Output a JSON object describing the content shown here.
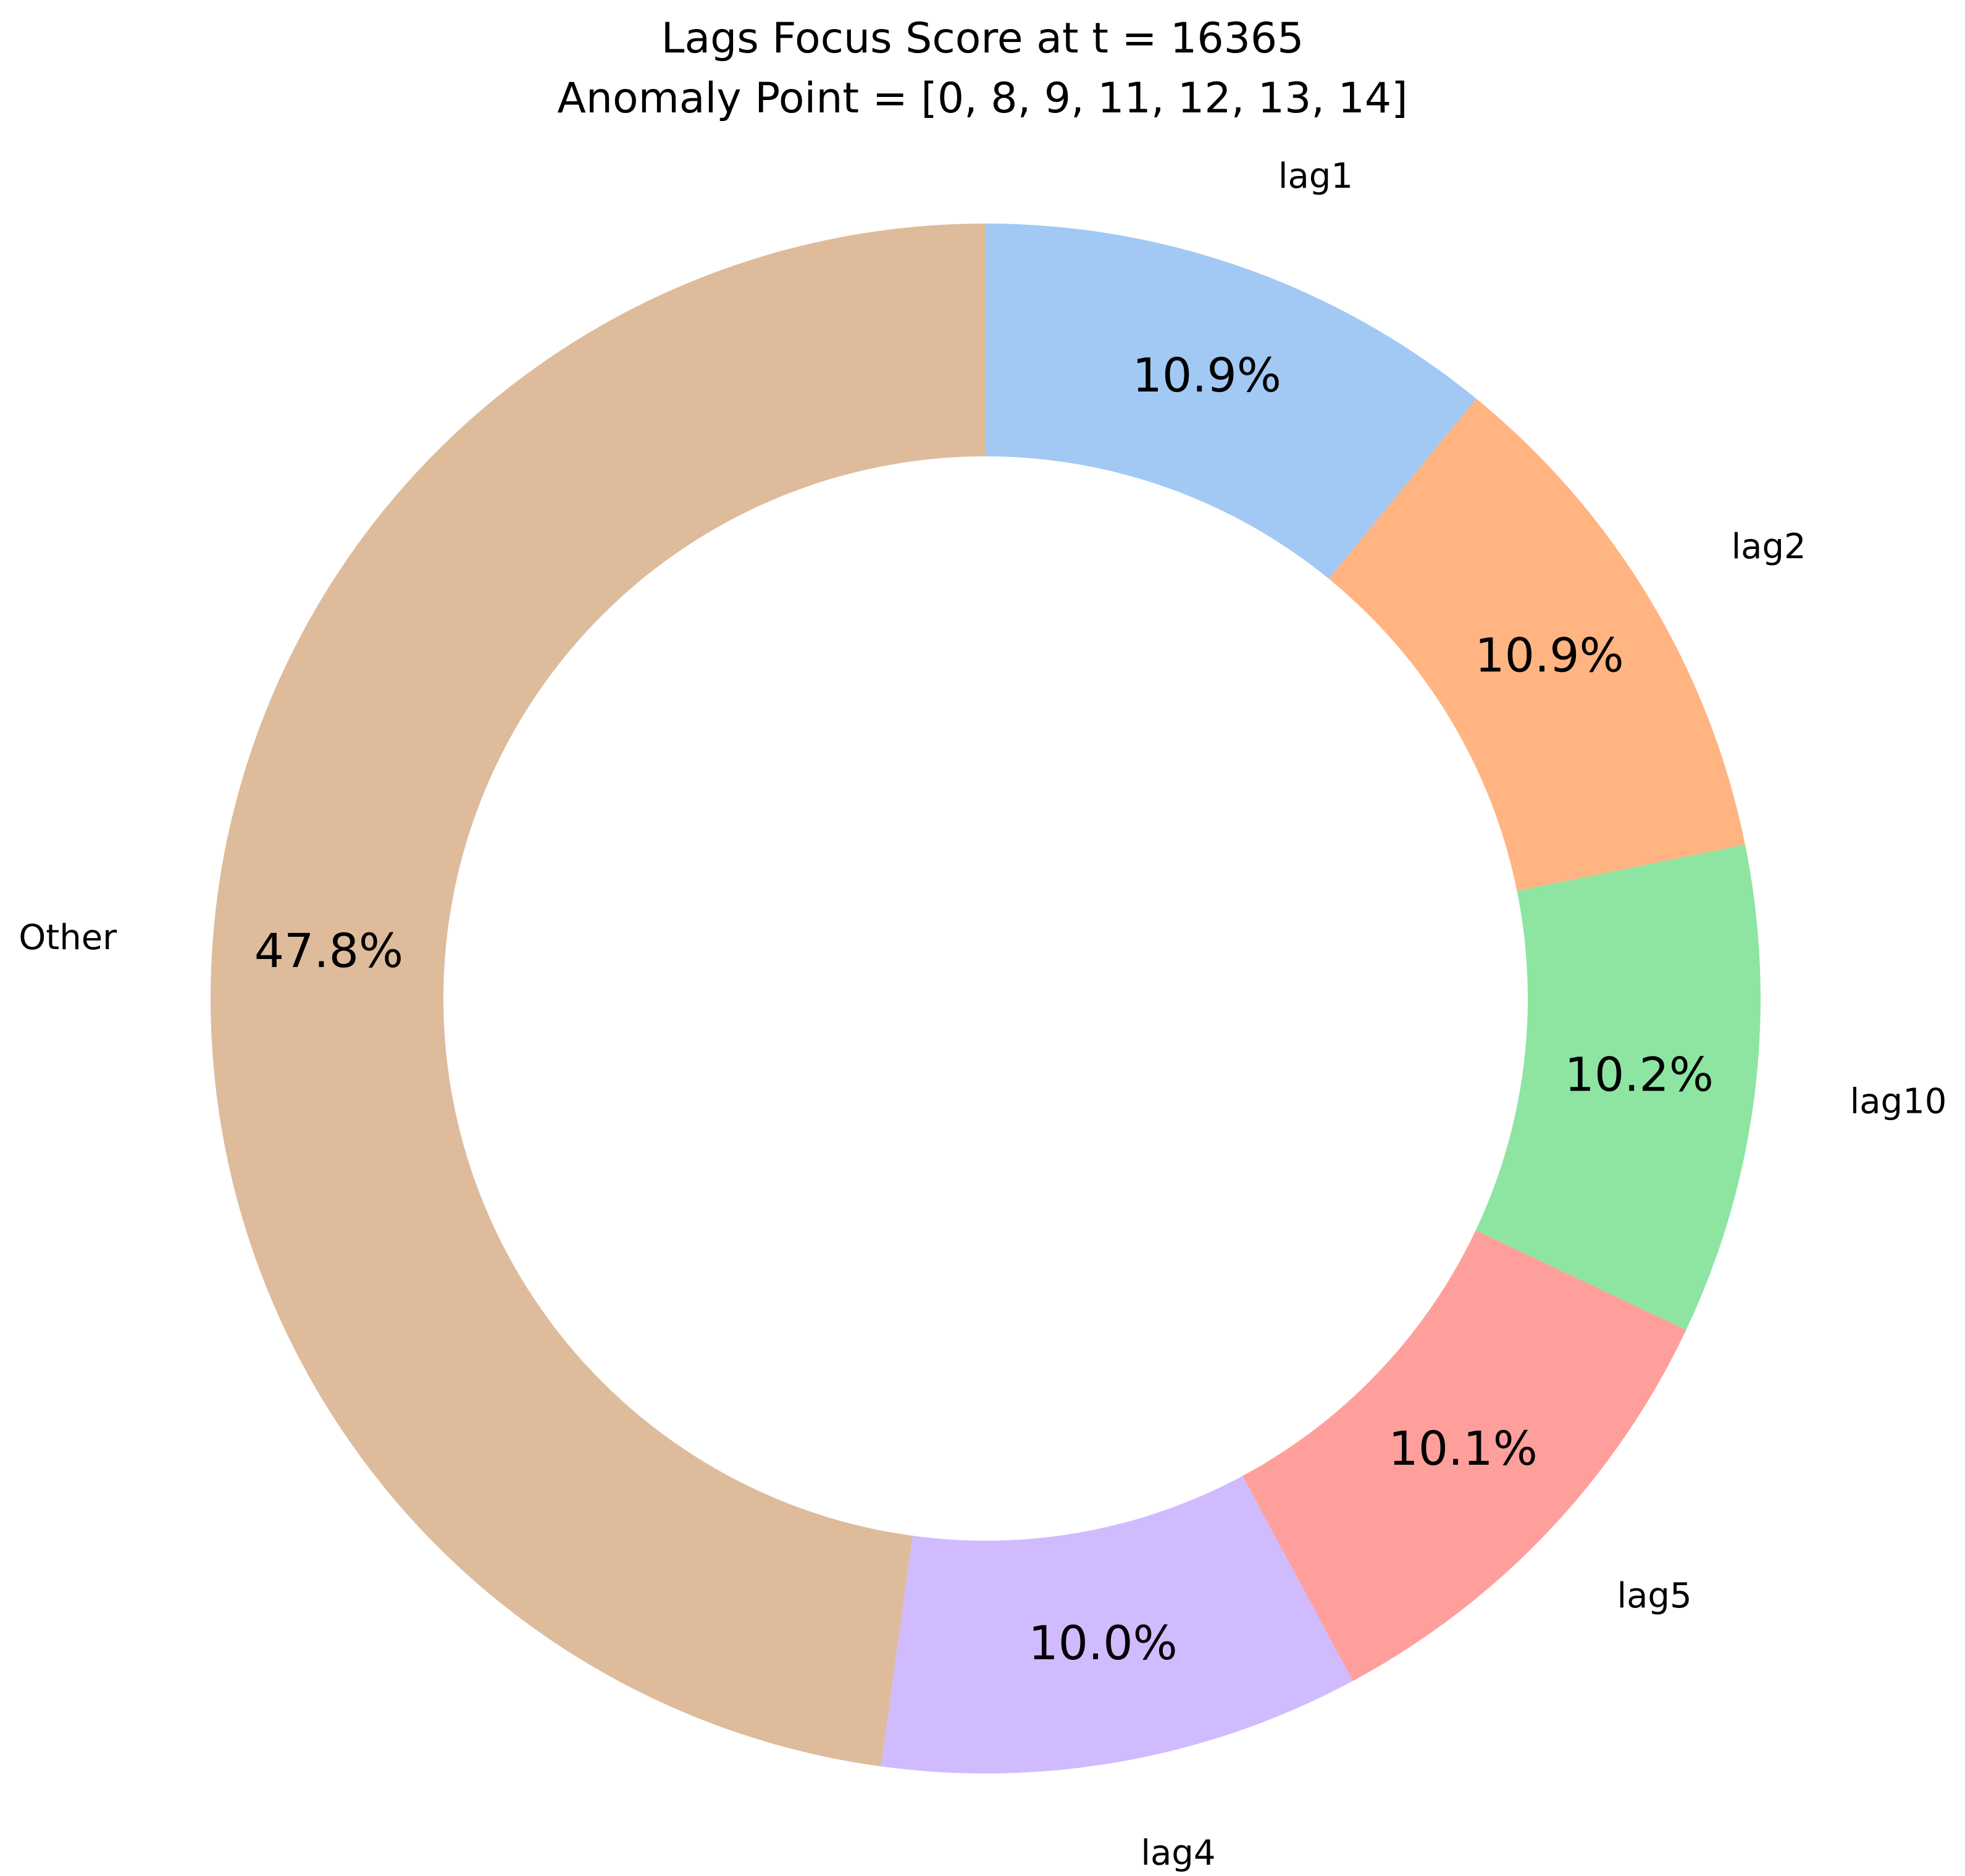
{
  "chart_data": {
    "type": "pie",
    "donut": true,
    "title_lines": [
      "Lags Focus Score at t = 16365",
      "Anomaly Point = [0, 8, 9, 11, 12, 13, 14]"
    ],
    "start_angle_deg": 90,
    "direction": "clockwise",
    "slices": [
      {
        "label": "lag1",
        "value": 10.9,
        "pct_label": "10.9%",
        "color": "#a1c9f4"
      },
      {
        "label": "lag2",
        "value": 10.9,
        "pct_label": "10.9%",
        "color": "#ffb482"
      },
      {
        "label": "lag10",
        "value": 10.2,
        "pct_label": "10.2%",
        "color": "#8de5a1"
      },
      {
        "label": "lag5",
        "value": 10.1,
        "pct_label": "10.1%",
        "color": "#ff9f9b"
      },
      {
        "label": "lag4",
        "value": 10.0,
        "pct_label": "10.0%",
        "color": "#d0bbff"
      },
      {
        "label": "Other",
        "value": 47.8,
        "pct_label": "47.8%",
        "color": "#debb9b"
      }
    ]
  }
}
